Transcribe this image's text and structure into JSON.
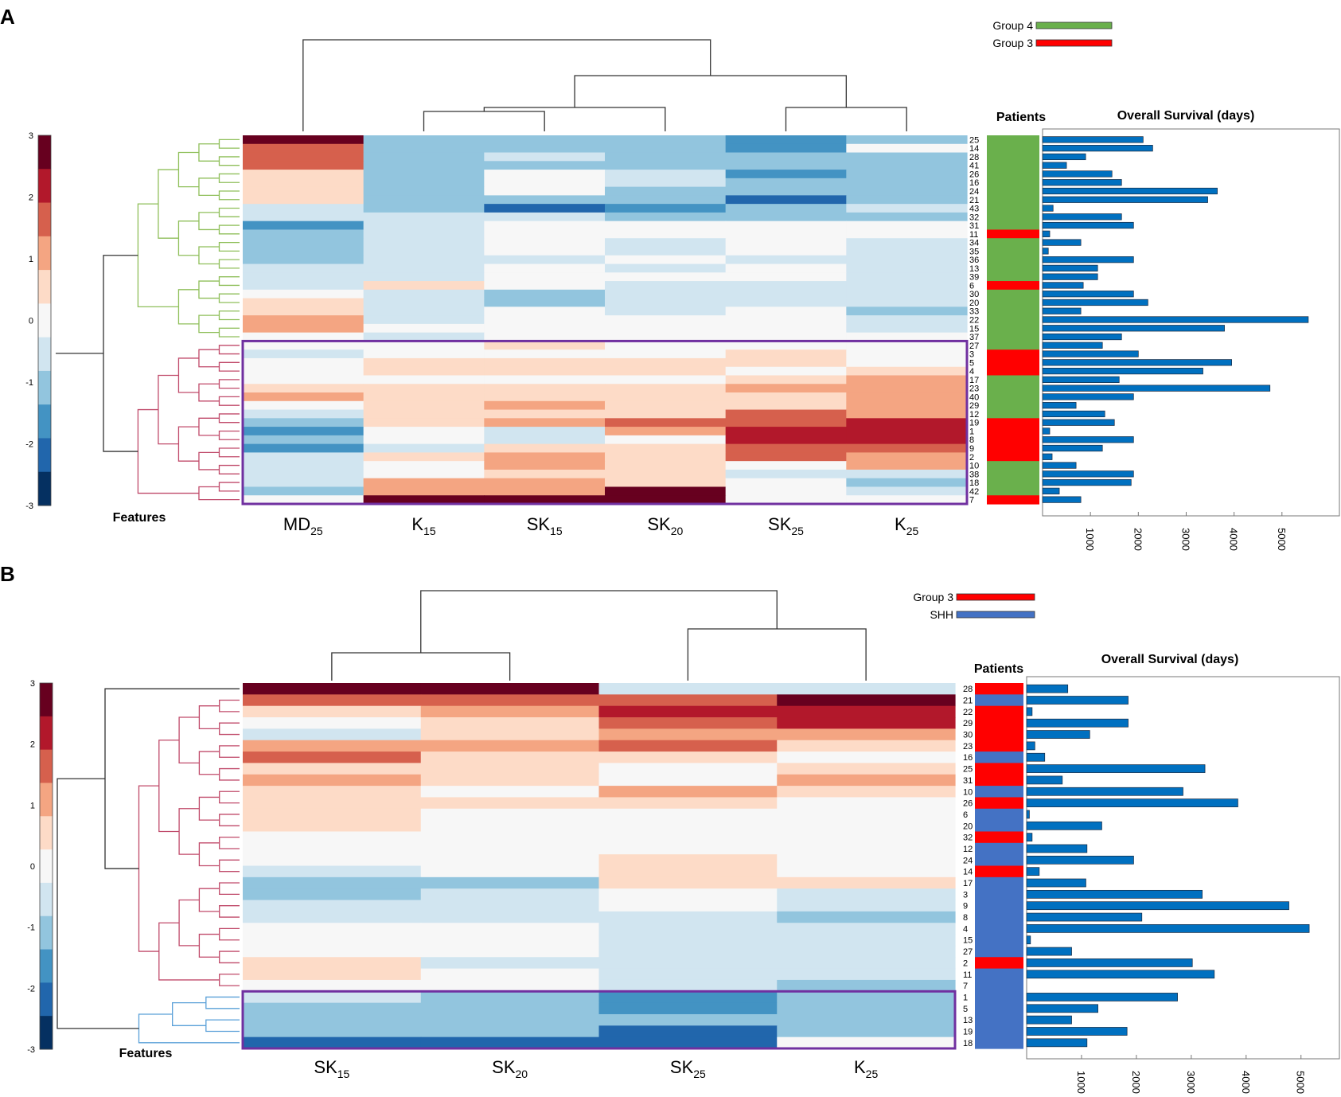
{
  "palette": [
    "#053061",
    "#2166ac",
    "#4393c3",
    "#92c5de",
    "#d1e5f0",
    "#f7f7f7",
    "#fddbc7",
    "#f4a582",
    "#d6604d",
    "#b2182b",
    "#67001f"
  ],
  "chart_data": [
    {
      "type": "heatmap",
      "panel_label": "A",
      "columns": [
        {
          "base": "MD",
          "sub": "25"
        },
        {
          "base": "K",
          "sub": "15"
        },
        {
          "base": "SK",
          "sub": "15"
        },
        {
          "base": "SK",
          "sub": "20"
        },
        {
          "base": "SK",
          "sub": "25"
        },
        {
          "base": "K",
          "sub": "25"
        }
      ],
      "rows": [
        "25",
        "14",
        "28",
        "41",
        "26",
        "16",
        "24",
        "21",
        "43",
        "32",
        "31",
        "11",
        "34",
        "35",
        "36",
        "13",
        "39",
        "6",
        "30",
        "20",
        "33",
        "22",
        "15",
        "37",
        "27",
        "3",
        "5",
        "4",
        "17",
        "23",
        "40",
        "29",
        "12",
        "19",
        "1",
        "8",
        "9",
        "2",
        "10",
        "38",
        "18",
        "42",
        "7"
      ],
      "values": [
        [
          3,
          -1,
          -1,
          -1,
          -2,
          -1
        ],
        [
          2,
          -1,
          -1,
          -1,
          -2,
          0
        ],
        [
          2,
          -1,
          -0.5,
          -1,
          -1,
          -1
        ],
        [
          2,
          -1,
          -1,
          -1,
          -1,
          -1
        ],
        [
          0.5,
          -1,
          0,
          -0.5,
          -2,
          -1
        ],
        [
          0.5,
          -1,
          0,
          -0.5,
          -1,
          -1
        ],
        [
          0.5,
          -1,
          0,
          -1,
          -1,
          -1
        ],
        [
          0.5,
          -1.5,
          -1,
          -1,
          -2.5,
          -1
        ],
        [
          -0.5,
          -1.5,
          -2.5,
          -2,
          -1,
          -0.5
        ],
        [
          -0.5,
          -0.5,
          -0.5,
          -1,
          -1,
          -1
        ],
        [
          -2,
          -0.5,
          0,
          0,
          0,
          0
        ],
        [
          -1,
          -0.5,
          0,
          0,
          0,
          0
        ],
        [
          -1.5,
          -0.5,
          0,
          -0.5,
          0,
          -0.5
        ],
        [
          -1.5,
          -0.5,
          0,
          -0.5,
          0,
          -0.5
        ],
        [
          -1.5,
          -0.5,
          -0.5,
          0,
          -0.5,
          -0.5
        ],
        [
          -0.5,
          -0.5,
          0,
          -0.5,
          0,
          -0.5
        ],
        [
          -0.5,
          -0.5,
          0,
          0,
          0,
          -0.5
        ],
        [
          -0.5,
          0.5,
          0,
          -0.5,
          -0.5,
          -0.5
        ],
        [
          0,
          -0.5,
          -1,
          -0.5,
          -0.5,
          -0.5
        ],
        [
          0.5,
          -0.5,
          -1,
          -0.5,
          -0.5,
          -0.5
        ],
        [
          0.5,
          -0.5,
          0,
          -0.5,
          0,
          -1
        ],
        [
          1,
          -0.5,
          0,
          0,
          0,
          -0.5
        ],
        [
          1,
          0,
          0,
          0,
          0,
          -0.5
        ],
        [
          0,
          -0.5,
          0,
          0,
          0,
          0
        ],
        [
          0,
          0,
          0.5,
          0,
          0,
          0
        ],
        [
          -0.5,
          0,
          0,
          0,
          0.5,
          0
        ],
        [
          0,
          0.5,
          0.5,
          0.5,
          0.5,
          0
        ],
        [
          0,
          0.5,
          0.5,
          0.5,
          0,
          0.5
        ],
        [
          0,
          0,
          0,
          0,
          0.5,
          1
        ],
        [
          0.5,
          0.5,
          0.5,
          0.5,
          1,
          1
        ],
        [
          1,
          0.5,
          0.5,
          0.5,
          0.5,
          1
        ],
        [
          0,
          0.5,
          1,
          0.5,
          0.5,
          1
        ],
        [
          -0.5,
          0.5,
          0.5,
          0.5,
          1.5,
          1
        ],
        [
          -1,
          0.5,
          1,
          1.5,
          1.5,
          2.5
        ],
        [
          -2,
          0,
          -0.5,
          1,
          2.5,
          2.5
        ],
        [
          -1.5,
          0,
          -0.5,
          0,
          2.5,
          2.5
        ],
        [
          -2,
          -0.5,
          0.5,
          0.5,
          2,
          1.5
        ],
        [
          -0.5,
          0.5,
          1,
          0.5,
          1.5,
          1
        ],
        [
          -0.5,
          0,
          1,
          0.5,
          0,
          1
        ],
        [
          -0.5,
          0,
          0.5,
          0.5,
          -0.5,
          -0.5
        ],
        [
          -0.5,
          1,
          1,
          0.5,
          0,
          -1
        ],
        [
          -1,
          1,
          1,
          3,
          0,
          -0.5
        ],
        [
          0,
          3,
          3,
          3,
          0,
          0
        ]
      ],
      "clusters": [
        {
          "rows": [
            "25",
            "14",
            "28",
            "41",
            "26",
            "16",
            "24",
            "21",
            "43",
            "32",
            "31",
            "11",
            "34",
            "35",
            "36",
            "13",
            "39",
            "6",
            "30",
            "20",
            "33",
            "22",
            "15",
            "37"
          ],
          "color": "#8fbf5a"
        },
        {
          "rows": [
            "27",
            "3",
            "5",
            "4",
            "17",
            "23",
            "40",
            "29",
            "12",
            "19",
            "1",
            "8",
            "9",
            "2",
            "10",
            "38",
            "18",
            "42",
            "7"
          ],
          "color": "#c04a6a"
        }
      ],
      "legend": [
        {
          "label": "Group 4",
          "color": "#6ab04c"
        },
        {
          "label": "Group 3",
          "color": "#ff0000"
        }
      ],
      "patients_label": "Patients",
      "patient_groups": [
        "Group 4",
        "Group 4",
        "Group 4",
        "Group 4",
        "Group 4",
        "Group 4",
        "Group 4",
        "Group 4",
        "Group 4",
        "Group 4",
        "Group 4",
        "Group 3",
        "Group 4",
        "Group 4",
        "Group 4",
        "Group 4",
        "Group 4",
        "Group 3",
        "Group 4",
        "Group 4",
        "Group 4",
        "Group 4",
        "Group 4",
        "Group 4",
        "Group 4",
        "Group 3",
        "Group 3",
        "Group 3",
        "Group 4",
        "Group 4",
        "Group 4",
        "Group 4",
        "Group 4",
        "Group 3",
        "Group 3",
        "Group 3",
        "Group 3",
        "Group 3",
        "Group 4",
        "Group 4",
        "Group 4",
        "Group 4",
        "Group 3"
      ],
      "survival_title": "Overall Survival (days)",
      "survival_days": [
        2100,
        2300,
        900,
        500,
        1450,
        1650,
        3650,
        3450,
        220,
        1650,
        1900,
        150,
        800,
        120,
        1900,
        1150,
        1150,
        850,
        1900,
        2200,
        800,
        5550,
        3800,
        1650,
        1250,
        2000,
        3950,
        3350,
        1600,
        4750,
        1900,
        700,
        1300,
        1500,
        150,
        1900,
        1250,
        200,
        700,
        1900,
        1850,
        350,
        800
      ],
      "survival_ticks": [
        "1000",
        "2000",
        "3000",
        "4000",
        "5000"
      ],
      "survival_max": 6200,
      "colorbar_ticks": [
        "3",
        "2",
        "1",
        "0",
        "-1",
        "-2",
        "-3"
      ],
      "features_label": "Features",
      "highlight_rows": [
        "27",
        "7"
      ]
    },
    {
      "type": "heatmap",
      "panel_label": "B",
      "columns": [
        {
          "base": "SK",
          "sub": "15"
        },
        {
          "base": "SK",
          "sub": "20"
        },
        {
          "base": "SK",
          "sub": "25"
        },
        {
          "base": "K",
          "sub": "25"
        }
      ],
      "rows": [
        "28",
        "21",
        "22",
        "29",
        "30",
        "23",
        "16",
        "25",
        "31",
        "10",
        "26",
        "6",
        "20",
        "32",
        "12",
        "24",
        "14",
        "17",
        "3",
        "9",
        "8",
        "4",
        "15",
        "27",
        "2",
        "11",
        "7",
        "1",
        "5",
        "13",
        "19",
        "18"
      ],
      "values": [
        [
          3,
          3,
          -0.5,
          -0.5
        ],
        [
          1.5,
          1.5,
          2,
          3
        ],
        [
          0.5,
          1,
          2.5,
          2.5
        ],
        [
          0,
          0.5,
          2,
          2.5
        ],
        [
          -0.5,
          0.5,
          1,
          1
        ],
        [
          1,
          1,
          2,
          0.5
        ],
        [
          2,
          0.5,
          0.5,
          0
        ],
        [
          0.5,
          0.5,
          0,
          0.5
        ],
        [
          1,
          0.5,
          0,
          1
        ],
        [
          0.5,
          0,
          1,
          0.5
        ],
        [
          0.5,
          0.5,
          0.5,
          0
        ],
        [
          0.5,
          0,
          0,
          0
        ],
        [
          0.5,
          0,
          0,
          0
        ],
        [
          0,
          0,
          0,
          0
        ],
        [
          0,
          0,
          0,
          0
        ],
        [
          0,
          0,
          0.5,
          0
        ],
        [
          -0.5,
          0,
          0.5,
          0
        ],
        [
          -1,
          -1,
          0.5,
          0.5
        ],
        [
          -1,
          -0.5,
          0,
          -0.5
        ],
        [
          -0.5,
          -0.5,
          0,
          -0.5
        ],
        [
          -0.5,
          -0.5,
          -0.5,
          -1
        ],
        [
          0,
          0,
          -0.5,
          -0.5
        ],
        [
          0,
          0,
          -0.5,
          -0.5
        ],
        [
          0,
          0,
          -0.5,
          -0.5
        ],
        [
          0.5,
          -0.5,
          -0.5,
          -0.5
        ],
        [
          0.5,
          0,
          -0.5,
          -0.5
        ],
        [
          0,
          0,
          -0.5,
          -1
        ],
        [
          -0.5,
          -1.5,
          -2,
          -1
        ],
        [
          -1,
          -1.5,
          -2,
          -1.5
        ],
        [
          -1,
          -1.5,
          -1,
          -1
        ],
        [
          -1,
          -1.5,
          -2.5,
          -1
        ],
        [
          -2.5,
          -2.5,
          -2.5,
          0
        ]
      ],
      "clusters": [
        {
          "rows": [
            "28"
          ],
          "color": "#555555"
        },
        {
          "rows": [
            "21",
            "22",
            "29",
            "30",
            "23",
            "16",
            "25",
            "31",
            "10",
            "26",
            "6",
            "20",
            "32",
            "12",
            "24",
            "14",
            "17",
            "3",
            "9",
            "8",
            "4",
            "15",
            "27",
            "2",
            "11",
            "7"
          ],
          "color": "#c04a6a"
        },
        {
          "rows": [
            "1",
            "5",
            "13",
            "19",
            "18"
          ],
          "color": "#5aa0d8"
        }
      ],
      "legend": [
        {
          "label": "Group 3",
          "color": "#ff0000"
        },
        {
          "label": "SHH",
          "color": "#4472c4"
        }
      ],
      "patients_label": "Patients",
      "patient_groups": [
        "Group 3",
        "SHH",
        "Group 3",
        "Group 3",
        "Group 3",
        "Group 3",
        "SHH",
        "Group 3",
        "Group 3",
        "SHH",
        "Group 3",
        "SHH",
        "SHH",
        "Group 3",
        "SHH",
        "SHH",
        "Group 3",
        "SHH",
        "SHH",
        "SHH",
        "SHH",
        "SHH",
        "SHH",
        "SHH",
        "Group 3",
        "SHH",
        "SHH",
        "SHH",
        "SHH",
        "SHH",
        "SHH",
        "SHH"
      ],
      "survival_title": "Overall Survival (days)",
      "survival_days": [
        750,
        1850,
        100,
        1850,
        1150,
        150,
        330,
        3250,
        650,
        2850,
        3850,
        50,
        1370,
        100,
        1100,
        1950,
        230,
        1080,
        3200,
        4780,
        2100,
        5150,
        70,
        820,
        3020,
        3420,
        0,
        2750,
        1300,
        820,
        1830,
        1100
      ],
      "survival_ticks": [
        "1000",
        "2000",
        "3000",
        "4000",
        "5000"
      ],
      "survival_max": 5700,
      "colorbar_ticks": [
        "3",
        "2",
        "1",
        "0",
        "-1",
        "-2",
        "-3"
      ],
      "features_label": "Features",
      "highlight_rows": [
        "1",
        "18"
      ]
    }
  ]
}
